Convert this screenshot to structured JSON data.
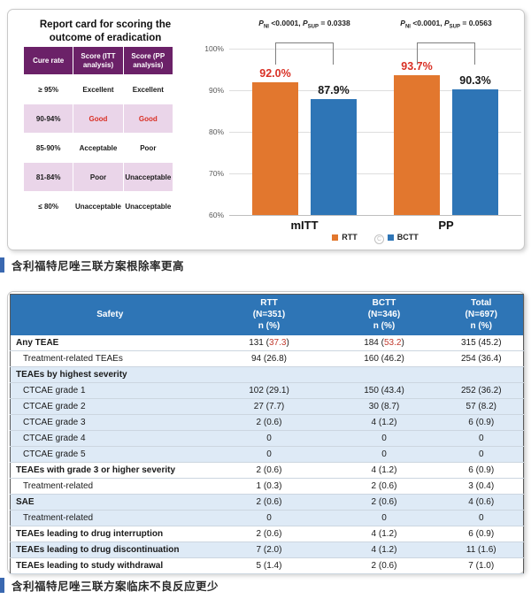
{
  "colors": {
    "accent_orange": "#E2772E",
    "accent_blue": "#2E75B6",
    "highlight_red": "#D93025",
    "report_header_purple": "#6B2168",
    "report_row_pink": "#EAD5E9",
    "safety_row_light_blue": "#DEEAF6",
    "caption_bar_blue": "#3A68B0"
  },
  "report_card": {
    "title": "Report card for scoring the outcome of eradication",
    "headers": [
      "Cure rate",
      "Score (ITT analysis)",
      "Score (PP analysis)"
    ],
    "rows": [
      {
        "cure_rate": "≥ 95%",
        "itt": "Excellent",
        "pp": "Excellent",
        "shaded": false,
        "red": false
      },
      {
        "cure_rate": "90-94%",
        "itt": "Good",
        "pp": "Good",
        "shaded": true,
        "red": true
      },
      {
        "cure_rate": "85-90%",
        "itt": "Acceptable",
        "pp": "Poor",
        "shaded": false,
        "red": false
      },
      {
        "cure_rate": "81-84%",
        "itt": "Poor",
        "pp": "Unacceptable",
        "shaded": true,
        "red": false
      },
      {
        "cure_rate": "≤ 80%",
        "itt": "Unacceptable",
        "pp": "Unacceptable",
        "shaded": false,
        "red": false
      }
    ]
  },
  "chart_data": {
    "type": "bar",
    "title": "",
    "categories": [
      "mITT",
      "PP"
    ],
    "series": [
      {
        "name": "RTT",
        "color": "#E2772E",
        "values": [
          92.0,
          93.7
        ],
        "labels": [
          "92.0%",
          "93.7%"
        ],
        "label_color": "#D93025"
      },
      {
        "name": "BCTT",
        "color": "#2E75B6",
        "values": [
          87.9,
          90.3
        ],
        "labels": [
          "87.9%",
          "90.3%"
        ],
        "label_color": "#1a1a1a"
      }
    ],
    "annotations": [
      {
        "group": "mITT",
        "ni": "<0.0001",
        "sup": "= 0.0338"
      },
      {
        "group": "PP",
        "ni": "<0.0001",
        "sup": "= 0.0563"
      }
    ],
    "ylabel": "",
    "xlabel": "",
    "ylim": [
      60,
      100
    ],
    "yticks": [
      "60%",
      "70%",
      "80%",
      "90%",
      "100%"
    ],
    "grid": true,
    "legend_position": "bottom"
  },
  "safety_table": {
    "corner_header": "Safety",
    "columns": [
      {
        "name": "RTT",
        "n": "(N=351)",
        "unit": "n (%)"
      },
      {
        "name": "BCTT",
        "n": "(N=346)",
        "unit": "n (%)"
      },
      {
        "name": "Total",
        "n": "(N=697)",
        "unit": "n (%)"
      }
    ],
    "rows": [
      {
        "label": "Any TEAE",
        "bold": true,
        "indent": false,
        "shaded": false,
        "cells": [
          {
            "text": "131 (37.3)",
            "red": "37.3"
          },
          {
            "text": "184 (53.2)",
            "red": "53.2"
          },
          {
            "text": "315 (45.2)"
          }
        ]
      },
      {
        "label": "Treatment-related TEAEs",
        "bold": false,
        "indent": true,
        "shaded": false,
        "cells": [
          {
            "text": "94 (26.8)"
          },
          {
            "text": "160 (46.2)"
          },
          {
            "text": "254 (36.4)"
          }
        ]
      },
      {
        "label": "TEAEs by highest severity",
        "bold": true,
        "indent": false,
        "shaded": true,
        "cells": [
          {
            "text": ""
          },
          {
            "text": ""
          },
          {
            "text": ""
          }
        ]
      },
      {
        "label": "CTCAE grade 1",
        "bold": false,
        "indent": true,
        "shaded": true,
        "cells": [
          {
            "text": "102 (29.1)"
          },
          {
            "text": "150 (43.4)"
          },
          {
            "text": "252 (36.2)"
          }
        ]
      },
      {
        "label": "CTCAE grade 2",
        "bold": false,
        "indent": true,
        "shaded": true,
        "cells": [
          {
            "text": "27 (7.7)"
          },
          {
            "text": "30 (8.7)"
          },
          {
            "text": "57 (8.2)"
          }
        ]
      },
      {
        "label": "CTCAE grade 3",
        "bold": false,
        "indent": true,
        "shaded": true,
        "cells": [
          {
            "text": "2 (0.6)"
          },
          {
            "text": "4 (1.2)"
          },
          {
            "text": "6 (0.9)"
          }
        ]
      },
      {
        "label": "CTCAE grade 4",
        "bold": false,
        "indent": true,
        "shaded": true,
        "cells": [
          {
            "text": "0"
          },
          {
            "text": "0"
          },
          {
            "text": "0"
          }
        ]
      },
      {
        "label": "CTCAE grade 5",
        "bold": false,
        "indent": true,
        "shaded": true,
        "cells": [
          {
            "text": "0"
          },
          {
            "text": "0"
          },
          {
            "text": "0"
          }
        ]
      },
      {
        "label": "TEAEs with grade 3 or higher severity",
        "bold": true,
        "indent": false,
        "shaded": false,
        "cells": [
          {
            "text": "2 (0.6)"
          },
          {
            "text": "4 (1.2)"
          },
          {
            "text": "6 (0.9)"
          }
        ]
      },
      {
        "label": "Treatment-related",
        "bold": false,
        "indent": true,
        "shaded": false,
        "cells": [
          {
            "text": "1 (0.3)"
          },
          {
            "text": "2 (0.6)"
          },
          {
            "text": "3 (0.4)"
          }
        ]
      },
      {
        "label": "SAE",
        "bold": true,
        "indent": false,
        "shaded": true,
        "cells": [
          {
            "text": "2 (0.6)"
          },
          {
            "text": "2 (0.6)"
          },
          {
            "text": "4 (0.6)"
          }
        ]
      },
      {
        "label": "Treatment-related",
        "bold": false,
        "indent": true,
        "shaded": true,
        "cells": [
          {
            "text": "0"
          },
          {
            "text": "0"
          },
          {
            "text": "0"
          }
        ]
      },
      {
        "label": "TEAEs leading to drug interruption",
        "bold": true,
        "indent": false,
        "shaded": false,
        "cells": [
          {
            "text": "2 (0.6)"
          },
          {
            "text": "4 (1.2)"
          },
          {
            "text": "6 (0.9)"
          }
        ]
      },
      {
        "label": "TEAEs leading to drug discontinuation",
        "bold": true,
        "indent": false,
        "shaded": true,
        "cells": [
          {
            "text": "7 (2.0)"
          },
          {
            "text": "4 (1.2)"
          },
          {
            "text": "11 (1.6)"
          }
        ]
      },
      {
        "label": "TEAEs leading to study withdrawal",
        "bold": true,
        "indent": false,
        "shaded": false,
        "cells": [
          {
            "text": "5 (1.4)"
          },
          {
            "text": "2 (0.6)"
          },
          {
            "text": "7 (1.0)"
          }
        ]
      }
    ]
  },
  "captions": {
    "efficacy": "含利福特尼唑三联方案根除率更高",
    "safety": "含利福特尼唑三联方案临床不良反应更少"
  }
}
